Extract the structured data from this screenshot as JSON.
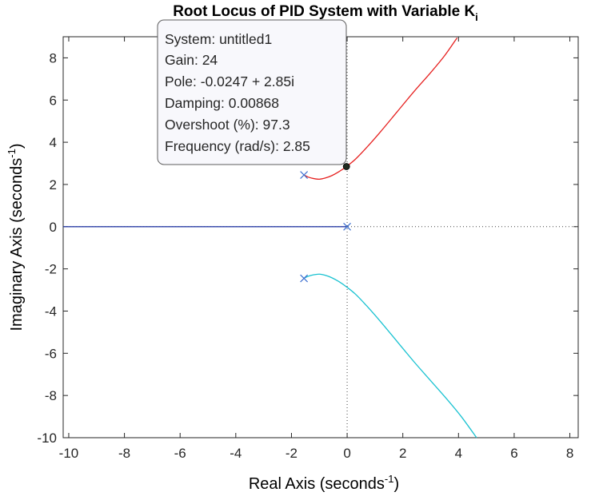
{
  "chart_data": {
    "type": "line",
    "subtype": "root-locus",
    "title": "Root Locus of PID System with Variable K",
    "title_subscript": "i",
    "xlabel": "Real Axis (seconds",
    "xlabel_superscript": "-1",
    "xlabel_suffix": ")",
    "ylabel": "Imaginary Axis (seconds",
    "ylabel_superscript": "-1",
    "ylabel_suffix": ")",
    "xlim": [
      -10.2,
      8.3
    ],
    "ylim": [
      -10,
      9
    ],
    "xticks": [
      -10,
      -8,
      -6,
      -4,
      -2,
      0,
      2,
      4,
      6,
      8
    ],
    "yticks": [
      -10,
      -8,
      -6,
      -4,
      -2,
      0,
      2,
      4,
      6,
      8
    ],
    "grid": false,
    "series": [
      {
        "color": "#e6201f",
        "points": [
          [
            -1.55,
            2.45
          ],
          [
            -1.4,
            2.35
          ],
          [
            -1.2,
            2.28
          ],
          [
            -1.0,
            2.25
          ],
          [
            -0.8,
            2.3
          ],
          [
            -0.55,
            2.42
          ],
          [
            -0.3,
            2.6
          ],
          [
            -0.0247,
            2.85
          ],
          [
            0.3,
            3.2
          ],
          [
            0.7,
            3.75
          ],
          [
            1.2,
            4.5
          ],
          [
            1.8,
            5.45
          ],
          [
            2.4,
            6.4
          ],
          [
            3.0,
            7.3
          ],
          [
            3.5,
            8.1
          ],
          [
            3.95,
            8.95
          ]
        ]
      },
      {
        "color": "#19c2d1",
        "points": [
          [
            -1.55,
            -2.45
          ],
          [
            -1.4,
            -2.35
          ],
          [
            -1.2,
            -2.28
          ],
          [
            -1.0,
            -2.25
          ],
          [
            -0.8,
            -2.3
          ],
          [
            -0.55,
            -2.42
          ],
          [
            -0.3,
            -2.6
          ],
          [
            -0.0247,
            -2.85
          ],
          [
            0.3,
            -3.2
          ],
          [
            0.7,
            -3.75
          ],
          [
            1.2,
            -4.5
          ],
          [
            1.8,
            -5.45
          ],
          [
            2.4,
            -6.4
          ],
          [
            3.0,
            -7.3
          ],
          [
            3.6,
            -8.2
          ],
          [
            4.1,
            -9.0
          ],
          [
            4.65,
            -10.0
          ]
        ]
      },
      {
        "color": "#2b3fa6",
        "points": [
          [
            -10.2,
            0
          ],
          [
            0,
            0
          ]
        ]
      }
    ],
    "poles": [
      [
        -1.55,
        2.45
      ],
      [
        -1.55,
        -2.45
      ],
      [
        0,
        0
      ]
    ],
    "pole_color": "#3d6fd0",
    "selected_point": [
      -0.0247,
      2.85
    ],
    "datatip": {
      "lines": [
        "System: untitled1",
        "Gain: 24",
        "Pole: -0.0247 + 2.85i",
        "Damping: 0.00868",
        "Overshoot (%): 97.3",
        "Frequency (rad/s): 2.85"
      ]
    }
  }
}
